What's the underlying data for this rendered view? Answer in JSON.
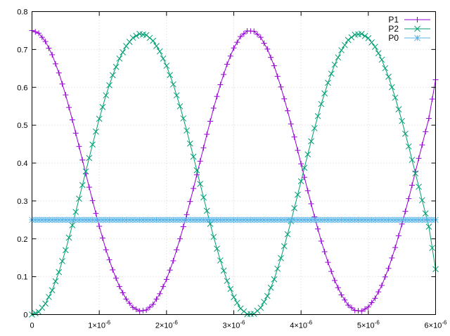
{
  "chart_data": {
    "type": "line",
    "title": "",
    "xlabel": "",
    "ylabel": "",
    "xlim": [
      0,
      6e-06
    ],
    "ylim": [
      0,
      0.8
    ],
    "grid": true,
    "legend_position": "top-right",
    "x_ticks": [
      {
        "value": 0,
        "mant": "0",
        "exp": ""
      },
      {
        "value": 1e-06,
        "mant": "1×10",
        "exp": "-6"
      },
      {
        "value": 2e-06,
        "mant": "2×10",
        "exp": "-6"
      },
      {
        "value": 3e-06,
        "mant": "3×10",
        "exp": "-6"
      },
      {
        "value": 4e-06,
        "mant": "4×10",
        "exp": "-6"
      },
      {
        "value": 5e-06,
        "mant": "5×10",
        "exp": "-6"
      },
      {
        "value": 6e-06,
        "mant": "6×10",
        "exp": "-6"
      }
    ],
    "y_ticks": [
      "0",
      "0.1",
      "0.2",
      "0.3",
      "0.4",
      "0.5",
      "0.6",
      "0.7",
      "0.8"
    ],
    "x": [
      0,
      1e-07,
      2e-07,
      3e-07,
      4e-07,
      5e-07,
      6e-07,
      7e-07,
      8e-07,
      9e-07,
      1e-06,
      1.1e-06,
      1.2e-06,
      1.3e-06,
      1.4e-06,
      1.5e-06,
      1.6e-06,
      1.7e-06,
      1.8e-06,
      1.9e-06,
      2e-06,
      2.1e-06,
      2.2e-06,
      2.3e-06,
      2.4e-06,
      2.5e-06,
      2.6e-06,
      2.7e-06,
      2.8e-06,
      2.9e-06,
      3e-06,
      3.1e-06,
      3.2e-06,
      3.3e-06,
      3.4e-06,
      3.5e-06,
      3.6e-06,
      3.7e-06,
      3.8e-06,
      3.9e-06,
      4e-06,
      4.1e-06,
      4.2e-06,
      4.3e-06,
      4.4e-06,
      4.5e-06,
      4.6e-06,
      4.7e-06,
      4.8e-06,
      4.9e-06,
      5e-06,
      5.1e-06,
      5.2e-06,
      5.3e-06,
      5.4e-06,
      5.5e-06,
      5.6e-06,
      5.7e-06,
      5.8e-06,
      5.9e-06,
      6e-06
    ],
    "series": [
      {
        "name": "P1",
        "color": "#9400d3",
        "marker": "plus",
        "values": [
          0.75,
          0.743,
          0.721,
          0.686,
          0.638,
          0.58,
          0.514,
          0.444,
          0.372,
          0.301,
          0.233,
          0.171,
          0.118,
          0.074,
          0.041,
          0.019,
          0.009,
          0.012,
          0.027,
          0.055,
          0.093,
          0.142,
          0.2,
          0.264,
          0.333,
          0.405,
          0.476,
          0.545,
          0.607,
          0.661,
          0.704,
          0.734,
          0.749,
          0.748,
          0.732,
          0.701,
          0.657,
          0.601,
          0.538,
          0.469,
          0.398,
          0.327,
          0.258,
          0.194,
          0.138,
          0.09,
          0.052,
          0.025,
          0.011,
          0.009,
          0.02,
          0.043,
          0.077,
          0.122,
          0.177,
          0.239,
          0.306,
          0.377,
          0.448,
          0.518,
          0.62
        ]
      },
      {
        "name": "P2",
        "color": "#009e73",
        "marker": "cross",
        "values": [
          0.0,
          0.007,
          0.029,
          0.064,
          0.112,
          0.17,
          0.236,
          0.306,
          0.378,
          0.449,
          0.517,
          0.579,
          0.632,
          0.676,
          0.709,
          0.731,
          0.741,
          0.738,
          0.723,
          0.695,
          0.657,
          0.608,
          0.55,
          0.486,
          0.417,
          0.345,
          0.274,
          0.205,
          0.143,
          0.089,
          0.046,
          0.016,
          0.001,
          0.002,
          0.018,
          0.049,
          0.093,
          0.149,
          0.212,
          0.281,
          0.352,
          0.423,
          0.492,
          0.556,
          0.612,
          0.66,
          0.698,
          0.725,
          0.739,
          0.741,
          0.73,
          0.707,
          0.673,
          0.628,
          0.573,
          0.511,
          0.444,
          0.373,
          0.302,
          0.232,
          0.12
        ]
      },
      {
        "name": "P0",
        "color": "#56b4e9",
        "marker": "star",
        "values": [
          0.25,
          0.25,
          0.25,
          0.25,
          0.25,
          0.25,
          0.25,
          0.25,
          0.25,
          0.25,
          0.25,
          0.25,
          0.25,
          0.25,
          0.25,
          0.25,
          0.25,
          0.25,
          0.25,
          0.25,
          0.25,
          0.25,
          0.25,
          0.25,
          0.25,
          0.25,
          0.25,
          0.25,
          0.25,
          0.25,
          0.25,
          0.25,
          0.25,
          0.25,
          0.25,
          0.25,
          0.25,
          0.25,
          0.25,
          0.25,
          0.25,
          0.25,
          0.25,
          0.25,
          0.25,
          0.25,
          0.25,
          0.25,
          0.25,
          0.25,
          0.25,
          0.25,
          0.25,
          0.25,
          0.25,
          0.25,
          0.25,
          0.25,
          0.25,
          0.25,
          0.25
        ]
      }
    ]
  }
}
